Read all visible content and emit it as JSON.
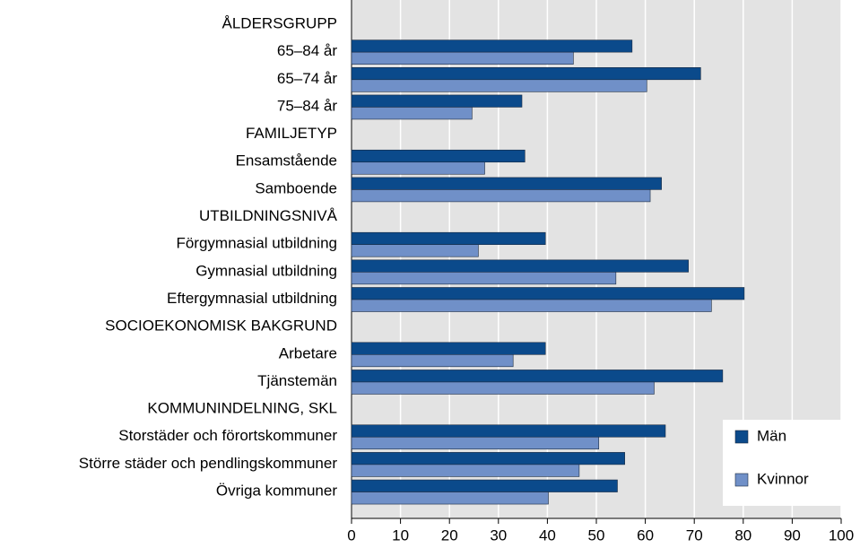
{
  "chart_data": {
    "type": "bar",
    "orientation": "horizontal",
    "categories": [
      "ÅLDERSGRUPP",
      "65–84 år",
      "65–74 år",
      "75–84 år",
      "FAMILJETYP",
      "Ensamstående",
      "Samboende",
      "UTBILDNINGSNIVÅ",
      "Förgymnasial utbildning",
      "Gymnasial utbildning",
      "Eftergymnasial utbildning",
      "SOCIOEKONOMISK BAKGRUND",
      "Arbetare",
      "Tjänstemän",
      "KOMMUNINDELNING, SKL",
      "Storstäder och förortskommuner",
      "Större städer och pendlingskommuner",
      "Övriga kommuner"
    ],
    "series": [
      {
        "name": "Män",
        "color": "#0b4a8b",
        "values": [
          null,
          57.3,
          71.3,
          34.8,
          null,
          35.4,
          63.3,
          null,
          39.6,
          68.8,
          80.2,
          null,
          39.6,
          75.8,
          null,
          64.1,
          55.8,
          54.3
        ]
      },
      {
        "name": "Kvinnor",
        "color": "#7090c8",
        "values": [
          null,
          45.3,
          60.3,
          24.6,
          null,
          27.2,
          61.0,
          null,
          25.9,
          54.0,
          73.5,
          null,
          33.0,
          61.8,
          null,
          50.5,
          46.5,
          40.2
        ]
      }
    ],
    "xlim": [
      0,
      100
    ],
    "xticks": [
      0,
      10,
      20,
      30,
      40,
      50,
      60,
      70,
      80,
      90,
      100
    ],
    "grid": true,
    "legend": "lower right"
  }
}
